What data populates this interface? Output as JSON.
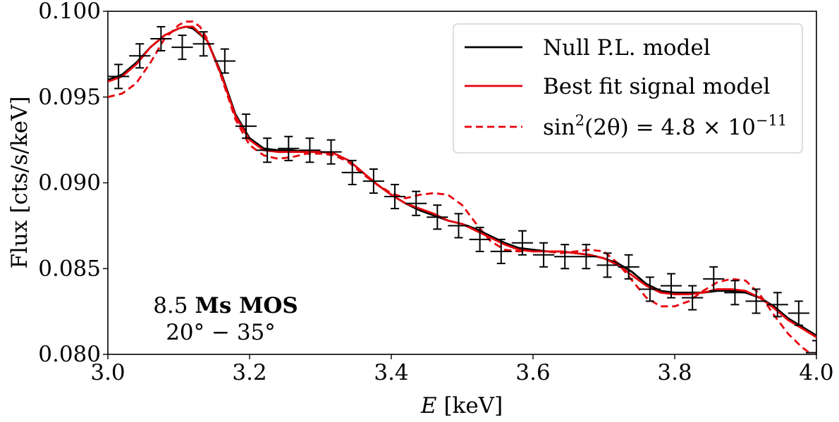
{
  "chart_data": {
    "type": "line",
    "xlabel_var": "E",
    "xlabel_unit": "[keV]",
    "ylabel": "Flux [cts/s/keV]",
    "xlim": [
      3.0,
      4.0
    ],
    "ylim": [
      0.08,
      0.1
    ],
    "x_ticks": [
      3.0,
      3.2,
      3.4,
      3.6,
      3.8,
      4.0
    ],
    "x_tick_labels": [
      "3.0",
      "3.2",
      "3.4",
      "3.6",
      "3.8",
      "4.0"
    ],
    "y_ticks": [
      0.08,
      0.085,
      0.09,
      0.095,
      0.1
    ],
    "y_tick_labels": [
      "0.080",
      "0.085",
      "0.090",
      "0.095",
      "0.100"
    ],
    "grid": false,
    "legend_position": "top-right",
    "annotation": {
      "line1_number": "8.5",
      "line1_bold": "Ms MOS",
      "line2": "20° − 35°"
    },
    "data_points": {
      "name": "data",
      "color": "#000000",
      "x": [
        3.015,
        3.045,
        3.075,
        3.105,
        3.135,
        3.165,
        3.195,
        3.225,
        3.255,
        3.285,
        3.315,
        3.345,
        3.375,
        3.405,
        3.435,
        3.465,
        3.495,
        3.525,
        3.555,
        3.585,
        3.615,
        3.645,
        3.675,
        3.705,
        3.735,
        3.765,
        3.795,
        3.825,
        3.855,
        3.885,
        3.915,
        3.945,
        3.975,
        4.0
      ],
      "y": [
        0.0962,
        0.0974,
        0.0984,
        0.0979,
        0.0981,
        0.0971,
        0.0933,
        0.0919,
        0.092,
        0.0919,
        0.0918,
        0.0906,
        0.0901,
        0.0892,
        0.0888,
        0.088,
        0.0875,
        0.0867,
        0.086,
        0.0865,
        0.0858,
        0.0857,
        0.0857,
        0.0852,
        0.0851,
        0.0838,
        0.084,
        0.0833,
        0.0844,
        0.0836,
        0.0831,
        0.0829,
        0.0824,
        0.0801
      ],
      "x_err": 0.015,
      "y_err": 0.0007
    },
    "series": [
      {
        "name": "Null P.L. model",
        "color": "#000000",
        "style": "solid",
        "x": [
          3.0,
          3.02,
          3.04,
          3.06,
          3.08,
          3.1,
          3.11,
          3.12,
          3.14,
          3.16,
          3.18,
          3.2,
          3.22,
          3.24,
          3.26,
          3.28,
          3.3,
          3.32,
          3.34,
          3.36,
          3.38,
          3.4,
          3.42,
          3.44,
          3.46,
          3.48,
          3.5,
          3.52,
          3.54,
          3.56,
          3.58,
          3.6,
          3.62,
          3.64,
          3.66,
          3.68,
          3.7,
          3.72,
          3.74,
          3.76,
          3.78,
          3.8,
          3.82,
          3.84,
          3.86,
          3.88,
          3.9,
          3.92,
          3.94,
          3.96,
          3.98,
          4.0
        ],
        "y": [
          0.096,
          0.0963,
          0.097,
          0.0979,
          0.0986,
          0.099,
          0.0991,
          0.099,
          0.0983,
          0.0964,
          0.094,
          0.0926,
          0.092,
          0.0919,
          0.0919,
          0.0918,
          0.0918,
          0.0917,
          0.0913,
          0.0906,
          0.0899,
          0.0893,
          0.0888,
          0.0884,
          0.0881,
          0.0878,
          0.0876,
          0.0873,
          0.0869,
          0.0865,
          0.0862,
          0.0861,
          0.086,
          0.086,
          0.0859,
          0.0858,
          0.0856,
          0.0853,
          0.0848,
          0.0841,
          0.0837,
          0.0836,
          0.0836,
          0.0836,
          0.0837,
          0.0837,
          0.0836,
          0.0833,
          0.0828,
          0.0821,
          0.0816,
          0.0811
        ]
      },
      {
        "name": "Best fit signal model",
        "color": "#e8000b",
        "style": "solid",
        "x": [
          3.0,
          3.02,
          3.04,
          3.06,
          3.08,
          3.1,
          3.11,
          3.12,
          3.14,
          3.16,
          3.18,
          3.2,
          3.22,
          3.24,
          3.26,
          3.28,
          3.3,
          3.32,
          3.34,
          3.36,
          3.38,
          3.4,
          3.42,
          3.44,
          3.46,
          3.48,
          3.5,
          3.52,
          3.54,
          3.56,
          3.58,
          3.6,
          3.62,
          3.64,
          3.66,
          3.68,
          3.7,
          3.72,
          3.74,
          3.76,
          3.78,
          3.8,
          3.82,
          3.84,
          3.86,
          3.88,
          3.9,
          3.92,
          3.94,
          3.96,
          3.98,
          4.0
        ],
        "y": [
          0.0959,
          0.0962,
          0.0969,
          0.0979,
          0.0986,
          0.099,
          0.0991,
          0.0991,
          0.0983,
          0.0963,
          0.0939,
          0.0925,
          0.0919,
          0.0918,
          0.0918,
          0.0918,
          0.0918,
          0.0917,
          0.0913,
          0.0906,
          0.0899,
          0.0893,
          0.0888,
          0.0885,
          0.0882,
          0.0878,
          0.0876,
          0.0872,
          0.0868,
          0.0864,
          0.0861,
          0.086,
          0.086,
          0.086,
          0.0859,
          0.0858,
          0.0856,
          0.0852,
          0.0846,
          0.084,
          0.0836,
          0.0835,
          0.0835,
          0.0836,
          0.0838,
          0.0838,
          0.0837,
          0.0833,
          0.0827,
          0.082,
          0.0815,
          0.081
        ]
      },
      {
        "name": "sin²(2θ) = 4.8 × 10⁻¹¹",
        "label_parts": {
          "fn": "sin",
          "sup": "2",
          "arg": "(2θ) = 4.8 × 10",
          "exp": "−11"
        },
        "color": "#e8000b",
        "style": "dashed",
        "x": [
          3.0,
          3.02,
          3.04,
          3.06,
          3.08,
          3.1,
          3.11,
          3.12,
          3.13,
          3.14,
          3.16,
          3.18,
          3.2,
          3.22,
          3.24,
          3.26,
          3.28,
          3.3,
          3.32,
          3.34,
          3.36,
          3.38,
          3.4,
          3.42,
          3.44,
          3.46,
          3.48,
          3.5,
          3.52,
          3.54,
          3.56,
          3.58,
          3.6,
          3.62,
          3.64,
          3.66,
          3.68,
          3.7,
          3.72,
          3.74,
          3.76,
          3.78,
          3.8,
          3.82,
          3.84,
          3.86,
          3.88,
          3.9,
          3.92,
          3.94,
          3.96,
          3.98,
          4.0
        ],
        "y": [
          0.095,
          0.0952,
          0.0958,
          0.097,
          0.0984,
          0.0992,
          0.0994,
          0.0994,
          0.0991,
          0.0984,
          0.0962,
          0.0937,
          0.0922,
          0.0916,
          0.0914,
          0.0915,
          0.0917,
          0.0917,
          0.0916,
          0.0912,
          0.0905,
          0.0899,
          0.0894,
          0.0891,
          0.0893,
          0.0894,
          0.0893,
          0.0887,
          0.0876,
          0.0866,
          0.0861,
          0.086,
          0.0861,
          0.086,
          0.0859,
          0.086,
          0.0861,
          0.086,
          0.0853,
          0.0843,
          0.0833,
          0.0828,
          0.0828,
          0.0831,
          0.0837,
          0.0842,
          0.0844,
          0.0843,
          0.0835,
          0.0823,
          0.0812,
          0.0804,
          0.0798
        ]
      }
    ]
  }
}
